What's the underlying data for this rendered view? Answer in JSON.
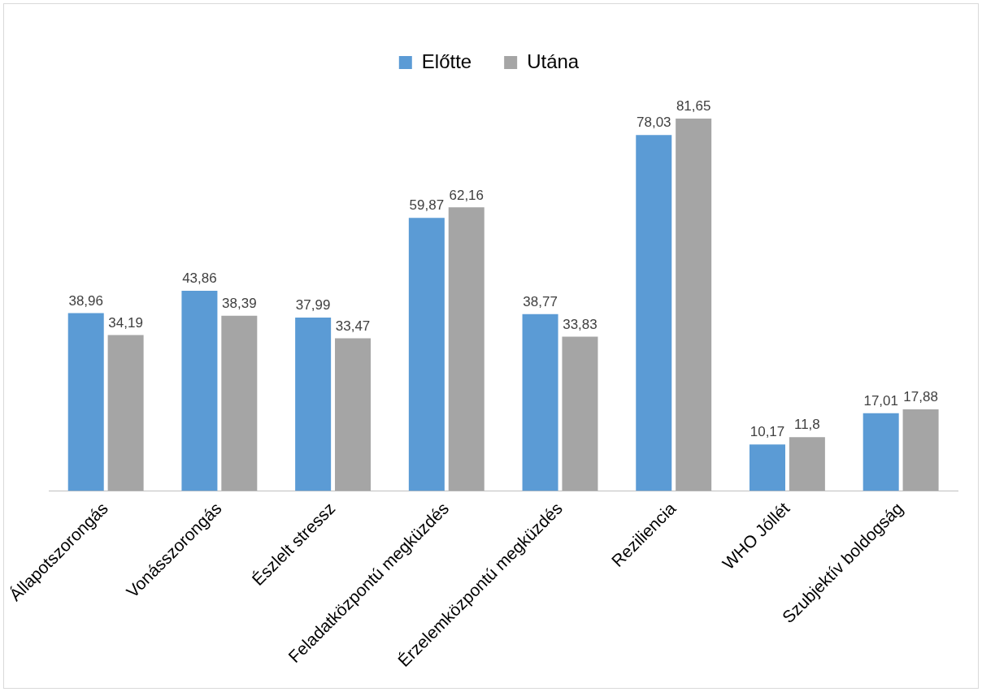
{
  "chart_data": {
    "type": "bar",
    "categories": [
      "Állapotszorongás",
      "Vonásszorongás",
      "Észlelt stressz",
      "Feladatközpontú megküzdés",
      "Érzelemközpontú megküzdés",
      "Reziliencia",
      "WHO Jóllét",
      "Szubjektív boldogság"
    ],
    "series": [
      {
        "name": "Előtte",
        "color": "#5b9bd5",
        "values": [
          38.96,
          43.86,
          37.99,
          59.87,
          38.77,
          78.03,
          10.17,
          17.01
        ],
        "value_labels": [
          "38,96",
          "43,86",
          "37,99",
          "59,87",
          "38,77",
          "78,03",
          "10,17",
          "17,01"
        ]
      },
      {
        "name": "Utána",
        "color": "#a5a5a5",
        "values": [
          34.19,
          38.39,
          33.47,
          62.16,
          33.83,
          81.65,
          11.8,
          17.88
        ],
        "value_labels": [
          "34,19",
          "38,39",
          "33,47",
          "62,16",
          "33,83",
          "81,65",
          "11,8",
          "17,88"
        ]
      }
    ],
    "legend": "top",
    "grid": false
  }
}
